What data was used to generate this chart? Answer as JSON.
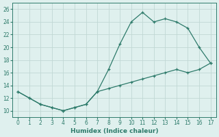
{
  "xlabel": "Humidex (Indice chaleur)",
  "x": [
    0,
    1,
    2,
    3,
    4,
    5,
    6,
    7,
    8,
    9,
    10,
    11,
    12,
    13,
    14,
    15,
    16,
    17
  ],
  "y_upper": [
    13,
    12,
    11,
    10.5,
    10,
    10.5,
    11,
    13,
    16.5,
    20.5,
    24,
    25.5,
    24,
    24.5,
    24,
    23,
    20,
    17.5
  ],
  "y_lower": [
    13,
    12,
    11,
    10.5,
    10,
    10.5,
    11,
    13,
    13.5,
    14,
    14.5,
    15,
    15.5,
    16,
    16.5,
    16,
    16.5,
    17.5
  ],
  "line_color": "#2d7a6a",
  "bg_color": "#dff0ee",
  "grid_color": "#c0d8d4",
  "ylim": [
    9.0,
    27.0
  ],
  "xlim": [
    -0.5,
    17.5
  ],
  "yticks": [
    10,
    12,
    14,
    16,
    18,
    20,
    22,
    24,
    26
  ],
  "xticks": [
    0,
    1,
    2,
    3,
    4,
    5,
    6,
    7,
    8,
    9,
    10,
    11,
    12,
    13,
    14,
    15,
    16,
    17
  ],
  "tick_labelsize": 5.5,
  "xlabel_fontsize": 6.5
}
